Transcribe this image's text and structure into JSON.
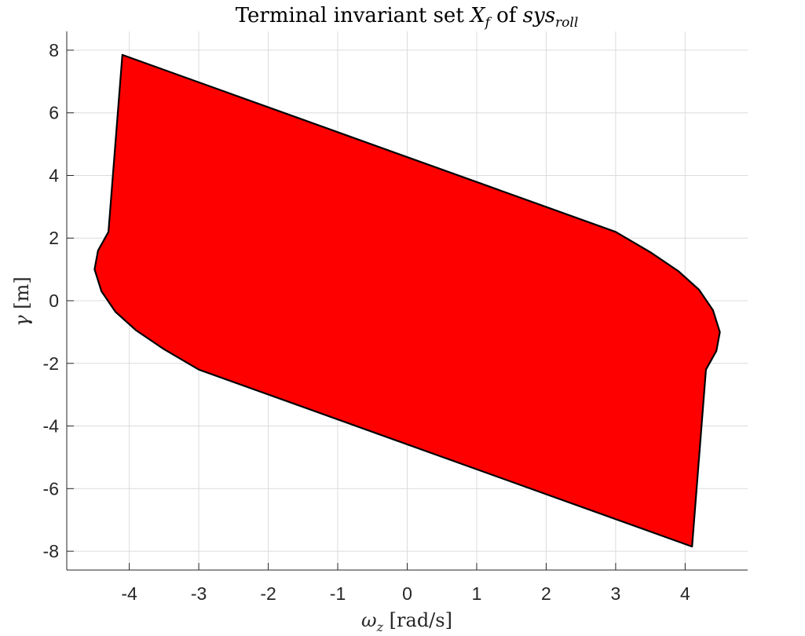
{
  "chart_data": {
    "type": "area",
    "title": {
      "prefix": "Terminal invariant set ",
      "symbol": "X",
      "symbol_sub": "f",
      "middle": " of ",
      "system": "sys",
      "system_sub": "roll"
    },
    "xlabel": {
      "symbol": "ω",
      "symbol_sub": "z",
      "unit": " [rad/s]"
    },
    "ylabel": {
      "symbol": "γ",
      "unit": " [m]"
    },
    "xlim": [
      -4.9,
      4.9
    ],
    "ylim": [
      -8.6,
      8.6
    ],
    "xticks": [
      -4,
      -3,
      -2,
      -1,
      0,
      1,
      2,
      3,
      4
    ],
    "yticks": [
      -8,
      -6,
      -4,
      -2,
      0,
      2,
      4,
      6,
      8
    ],
    "xticklabels": [
      "-4",
      "-3",
      "-2",
      "-1",
      "0",
      "1",
      "2",
      "3",
      "4"
    ],
    "yticklabels": [
      "-8",
      "-6",
      "-4",
      "-2",
      "0",
      "2",
      "4",
      "6",
      "8"
    ],
    "grid": true,
    "series": [
      {
        "fill_color": "#ff0000",
        "edge_color": "#000000",
        "x": [
          -4.1,
          3.0,
          3.5,
          3.9,
          4.2,
          4.4,
          4.5,
          4.45,
          4.3,
          4.1,
          -3.0,
          -3.5,
          -3.9,
          -4.2,
          -4.4,
          -4.5,
          -4.45,
          -4.3,
          -4.1
        ],
        "y": [
          7.85,
          2.2,
          1.55,
          0.95,
          0.35,
          -0.3,
          -1.0,
          -1.6,
          -2.2,
          -7.85,
          -2.2,
          -1.55,
          -0.95,
          -0.35,
          0.3,
          1.0,
          1.6,
          2.2,
          7.85
        ]
      }
    ]
  }
}
